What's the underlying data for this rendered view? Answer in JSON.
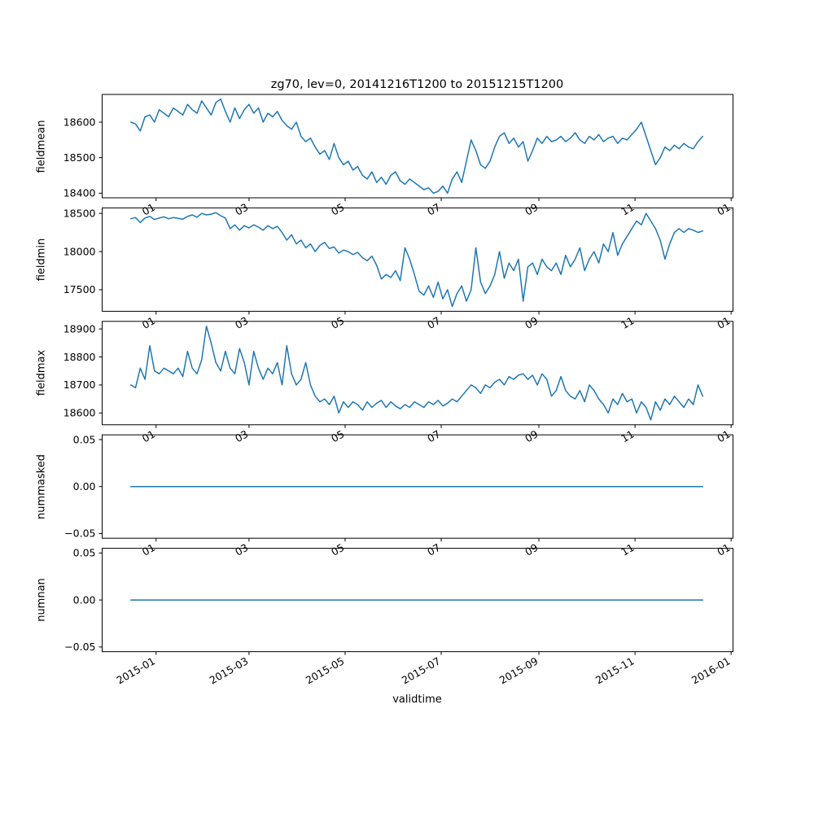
{
  "figure": {
    "title": "zg70, lev=0, 20141216T1200 to 20151215T1200",
    "xlabel": "validtime",
    "line_color": "#1f77b4",
    "axis_color": "#000000",
    "background": "#ffffff"
  },
  "chart_data": {
    "type": "line",
    "title": "zg70, lev=0, 20141216T1200 to 20151215T1200",
    "xlabel": "validtime",
    "x_start_date": "2014-12-16",
    "x_step_days": 3,
    "n_points": 122,
    "xlim_days": [
      -18.2,
      382.2
    ],
    "xticks_days": [
      16,
      75,
      136,
      197,
      259,
      320,
      381
    ],
    "xtick_labels_full": [
      "2015-01",
      "2015-03",
      "2015-05",
      "2015-07",
      "2015-09",
      "2015-11",
      "2016-01"
    ],
    "xtick_labels_short": [
      "01",
      "03",
      "05",
      "07",
      "09",
      "11",
      "01"
    ],
    "grid": false,
    "legend": "none",
    "subplots": [
      {
        "ylabel": "fieldmean",
        "yticks": [
          18400,
          18500,
          18600
        ],
        "ytick_labels": [
          "18400",
          "18500",
          "18600"
        ],
        "ylim": [
          18387,
          18678
        ],
        "values": [
          18600,
          18595,
          18575,
          18615,
          18620,
          18600,
          18635,
          18625,
          18615,
          18640,
          18630,
          18620,
          18650,
          18635,
          18625,
          18660,
          18640,
          18620,
          18655,
          18665,
          18630,
          18600,
          18640,
          18610,
          18635,
          18650,
          18625,
          18640,
          18600,
          18625,
          18615,
          18630,
          18605,
          18590,
          18580,
          18600,
          18560,
          18545,
          18555,
          18530,
          18510,
          18520,
          18495,
          18540,
          18500,
          18480,
          18490,
          18465,
          18475,
          18450,
          18440,
          18460,
          18430,
          18445,
          18425,
          18450,
          18460,
          18435,
          18425,
          18440,
          18430,
          18420,
          18410,
          18415,
          18400,
          18405,
          18420,
          18400,
          18440,
          18460,
          18430,
          18490,
          18550,
          18520,
          18480,
          18470,
          18490,
          18530,
          18560,
          18570,
          18540,
          18555,
          18530,
          18545,
          18490,
          18520,
          18555,
          18540,
          18560,
          18545,
          18550,
          18560,
          18545,
          18555,
          18570,
          18550,
          18540,
          18560,
          18550,
          18565,
          18545,
          18555,
          18560,
          18540,
          18555,
          18550,
          18565,
          18580,
          18600,
          18560,
          18520,
          18480,
          18500,
          18530,
          18520,
          18535,
          18525,
          18540,
          18530,
          18525,
          18545,
          18560
        ]
      },
      {
        "ylabel": "fieldmin",
        "yticks": [
          17500,
          18000,
          18500
        ],
        "ytick_labels": [
          "17500",
          "18000",
          "18500"
        ],
        "ylim": [
          17218,
          18572
        ],
        "values": [
          18430,
          18445,
          18380,
          18440,
          18460,
          18420,
          18440,
          18455,
          18430,
          18445,
          18435,
          18425,
          18460,
          18480,
          18450,
          18500,
          18480,
          18490,
          18510,
          18470,
          18440,
          18300,
          18350,
          18280,
          18340,
          18310,
          18350,
          18320,
          18280,
          18340,
          18300,
          18330,
          18250,
          18150,
          18220,
          18100,
          18150,
          18050,
          18100,
          18000,
          18080,
          18120,
          18040,
          18060,
          17980,
          18020,
          18000,
          17960,
          17990,
          17920,
          17880,
          17940,
          17820,
          17640,
          17700,
          17660,
          17750,
          17620,
          18050,
          17900,
          17700,
          17480,
          17430,
          17550,
          17400,
          17600,
          17380,
          17500,
          17280,
          17450,
          17550,
          17350,
          17500,
          18050,
          17600,
          17450,
          17550,
          17700,
          18000,
          17650,
          17850,
          17750,
          17900,
          17350,
          17800,
          17850,
          17700,
          17900,
          17800,
          17750,
          17850,
          17700,
          17950,
          17800,
          17900,
          18050,
          17750,
          17900,
          18000,
          17850,
          18100,
          18000,
          18250,
          17950,
          18100,
          18200,
          18300,
          18400,
          18350,
          18500,
          18400,
          18300,
          18150,
          17900,
          18100,
          18250,
          18300,
          18250,
          18300,
          18280,
          18250,
          18270
        ]
      },
      {
        "ylabel": "fieldmax",
        "yticks": [
          18600,
          18700,
          18800,
          18900
        ],
        "ytick_labels": [
          "18600",
          "18700",
          "18800",
          "18900"
        ],
        "ylim": [
          18558,
          18927
        ],
        "values": [
          18700,
          18690,
          18760,
          18720,
          18840,
          18750,
          18740,
          18760,
          18750,
          18740,
          18760,
          18730,
          18820,
          18760,
          18740,
          18790,
          18910,
          18850,
          18780,
          18750,
          18820,
          18760,
          18740,
          18830,
          18780,
          18700,
          18820,
          18760,
          18720,
          18760,
          18740,
          18780,
          18700,
          18840,
          18740,
          18700,
          18720,
          18780,
          18700,
          18660,
          18640,
          18650,
          18630,
          18660,
          18600,
          18640,
          18620,
          18640,
          18630,
          18610,
          18640,
          18620,
          18635,
          18645,
          18620,
          18640,
          18625,
          18615,
          18630,
          18620,
          18640,
          18630,
          18620,
          18640,
          18630,
          18645,
          18625,
          18635,
          18650,
          18640,
          18660,
          18680,
          18700,
          18690,
          18670,
          18700,
          18690,
          18710,
          18720,
          18700,
          18730,
          18720,
          18735,
          18740,
          18720,
          18735,
          18700,
          18740,
          18720,
          18660,
          18680,
          18730,
          18680,
          18660,
          18650,
          18680,
          18640,
          18700,
          18680,
          18650,
          18630,
          18600,
          18650,
          18630,
          18670,
          18640,
          18650,
          18600,
          18640,
          18620,
          18575,
          18640,
          18610,
          18650,
          18630,
          18660,
          18640,
          18620,
          18650,
          18630,
          18700,
          18660
        ]
      },
      {
        "ylabel": "nummasked",
        "yticks": [
          -0.05,
          0.0,
          0.05
        ],
        "ytick_labels": [
          "−0.05",
          "0.00",
          "0.05"
        ],
        "ylim": [
          -0.055,
          0.055
        ],
        "constant": 0
      },
      {
        "ylabel": "numnan",
        "yticks": [
          -0.05,
          0.0,
          0.05
        ],
        "ytick_labels": [
          "−0.05",
          "0.00",
          "0.05"
        ],
        "ylim": [
          -0.055,
          0.055
        ],
        "constant": 0
      }
    ]
  }
}
